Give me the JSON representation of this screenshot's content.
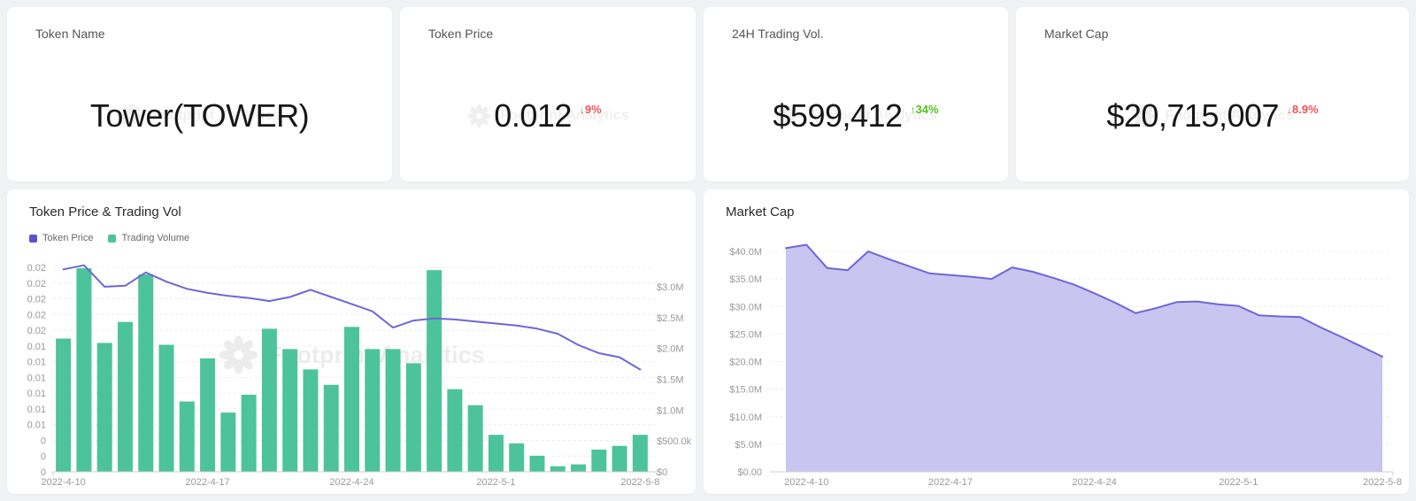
{
  "page": {
    "background": "#f1f2f4",
    "card_background": "#ffffff"
  },
  "watermark": {
    "text": "Footprint Analytics"
  },
  "stat_cards": [
    {
      "label": "Token Name",
      "value": "Tower(TOWER)"
    },
    {
      "label": "Token Price",
      "value": "0.012",
      "change": {
        "arrow": "↓",
        "text": "9%",
        "color": "#f05359"
      }
    },
    {
      "label": "24H Trading Vol.",
      "value": "$599,412",
      "change": {
        "arrow": "↑",
        "text": "34%",
        "color": "#52c41a"
      }
    },
    {
      "label": "Market Cap",
      "value": "$20,715,007",
      "change": {
        "arrow": "↓",
        "text": "8.9%",
        "color": "#f05359"
      }
    }
  ],
  "chart_data": [
    {
      "type": "bar+line",
      "title": "Token Price & Trading Vol",
      "legend": [
        {
          "name": "Token Price",
          "color": "#5a52cf"
        },
        {
          "name": "Trading Volume",
          "color": "#4dc39b"
        }
      ],
      "x": [
        "2022-4-10",
        "2022-4-11",
        "2022-4-12",
        "2022-4-13",
        "2022-4-14",
        "2022-4-15",
        "2022-4-16",
        "2022-4-17",
        "2022-4-18",
        "2022-4-19",
        "2022-4-20",
        "2022-4-21",
        "2022-4-22",
        "2022-4-23",
        "2022-4-24",
        "2022-4-25",
        "2022-4-26",
        "2022-4-27",
        "2022-4-28",
        "2022-4-29",
        "2022-4-30",
        "2022-5-1",
        "2022-5-2",
        "2022-5-3",
        "2022-5-4",
        "2022-5-5",
        "2022-5-6",
        "2022-5-7",
        "2022-5-8"
      ],
      "x_tick_labels": [
        "2022-4-10",
        "2022-4-17",
        "2022-4-24",
        "2022-5-1",
        "2022-5-8"
      ],
      "series": [
        {
          "name": "Token Price",
          "type": "line",
          "axis": "left",
          "color": "#6e66d8",
          "values": [
            0.0198,
            0.0202,
            0.0181,
            0.0182,
            0.0195,
            0.0186,
            0.0179,
            0.0175,
            0.0172,
            0.017,
            0.0167,
            0.0171,
            0.0178,
            0.0171,
            0.0164,
            0.0157,
            0.0141,
            0.0148,
            0.015,
            0.0149,
            0.0147,
            0.0145,
            0.0143,
            0.014,
            0.0135,
            0.0124,
            0.0116,
            0.0112,
            0.01
          ]
        },
        {
          "name": "Trading Volume",
          "type": "bar",
          "axis": "right",
          "color": "#4dc39b",
          "values_usd_millions": [
            2.16,
            3.3,
            2.09,
            2.43,
            3.2,
            2.06,
            1.14,
            1.84,
            0.96,
            1.25,
            2.32,
            1.99,
            1.66,
            1.41,
            2.35,
            1.99,
            1.99,
            1.76,
            3.27,
            1.34,
            1.08,
            0.6,
            0.46,
            0.26,
            0.09,
            0.12,
            0.36,
            0.42,
            0.6
          ]
        }
      ],
      "left_axis": {
        "min": 0,
        "max": 0.02,
        "tick_labels": [
          "0.02",
          "0.02",
          "0.02",
          "0.02",
          "0.02",
          "0.01",
          "0.01",
          "0.01",
          "0.01",
          "0.01",
          "0.01",
          "0",
          "0",
          "0"
        ]
      },
      "right_axis": {
        "min": 0,
        "max": 3000000,
        "tick_labels": [
          "$3.0M",
          "$2.5M",
          "$2.0M",
          "$1.5M",
          "$1.0M",
          "$500.0k",
          "$0"
        ]
      },
      "grid": true,
      "legend_position": "top-left"
    },
    {
      "type": "area",
      "title": "Market Cap",
      "x": [
        "2022-4-9",
        "2022-4-10",
        "2022-4-11",
        "2022-4-12",
        "2022-4-13",
        "2022-4-14",
        "2022-4-15",
        "2022-4-16",
        "2022-4-17",
        "2022-4-18",
        "2022-4-19",
        "2022-4-20",
        "2022-4-21",
        "2022-4-22",
        "2022-4-23",
        "2022-4-24",
        "2022-4-25",
        "2022-4-26",
        "2022-4-27",
        "2022-4-28",
        "2022-4-29",
        "2022-4-30",
        "2022-5-1",
        "2022-5-2",
        "2022-5-3",
        "2022-5-4",
        "2022-5-5",
        "2022-5-6",
        "2022-5-7",
        "2022-5-8"
      ],
      "x_tick_labels": [
        "2022-4-10",
        "2022-4-17",
        "2022-4-24",
        "2022-5-1",
        "2022-5-8"
      ],
      "series": [
        {
          "name": "Market Cap",
          "color": "#6e66d8",
          "fill": "#c8c5f0",
          "values_usd_millions": [
            40.6,
            41.2,
            37.0,
            36.6,
            40.0,
            38.6,
            37.3,
            36.0,
            35.7,
            35.4,
            35.0,
            37.1,
            36.3,
            35.2,
            34.0,
            32.4,
            30.7,
            28.8,
            29.7,
            30.8,
            30.9,
            30.4,
            30.1,
            28.4,
            28.2,
            28.1,
            26.2,
            24.5,
            22.7,
            20.9
          ]
        }
      ],
      "y_axis": {
        "min": 0,
        "max": 40000000,
        "tick_labels": [
          "$40.0M",
          "$35.0M",
          "$30.0M",
          "$25.0M",
          "$20.0M",
          "$15.0M",
          "$10.0M",
          "$5.0M",
          "$0.00"
        ]
      },
      "grid": true
    }
  ]
}
